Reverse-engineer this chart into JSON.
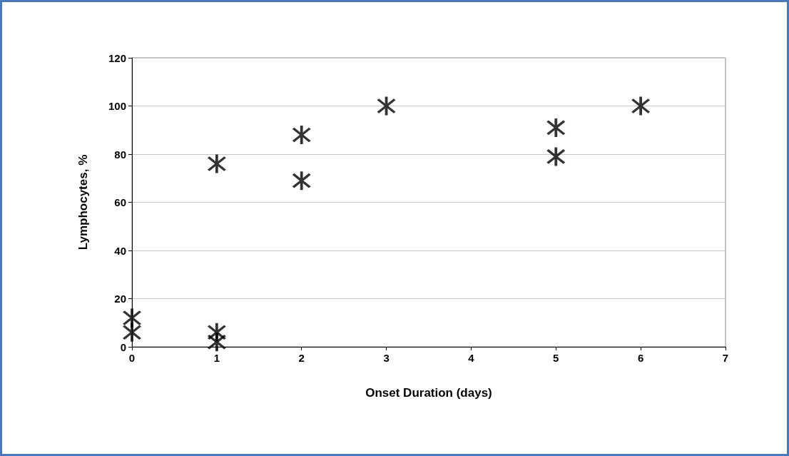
{
  "chart_data": {
    "type": "scatter",
    "xlabel": "Onset Duration (days)",
    "ylabel": "Lymphocytes, %",
    "x": [
      0,
      0,
      1,
      1,
      1,
      2,
      2,
      3,
      5,
      5,
      6
    ],
    "values": [
      12,
      6,
      6,
      2,
      76,
      88,
      69,
      100,
      91,
      79,
      100
    ],
    "color": "#000000",
    "marker": "star",
    "grid": "y",
    "xlim": [
      0,
      7
    ],
    "xticks": [
      0,
      1,
      2,
      3,
      4,
      5,
      6,
      7
    ],
    "ylim": [
      0,
      120
    ],
    "yticks": [
      0,
      20,
      40,
      60,
      80,
      100,
      120
    ]
  }
}
